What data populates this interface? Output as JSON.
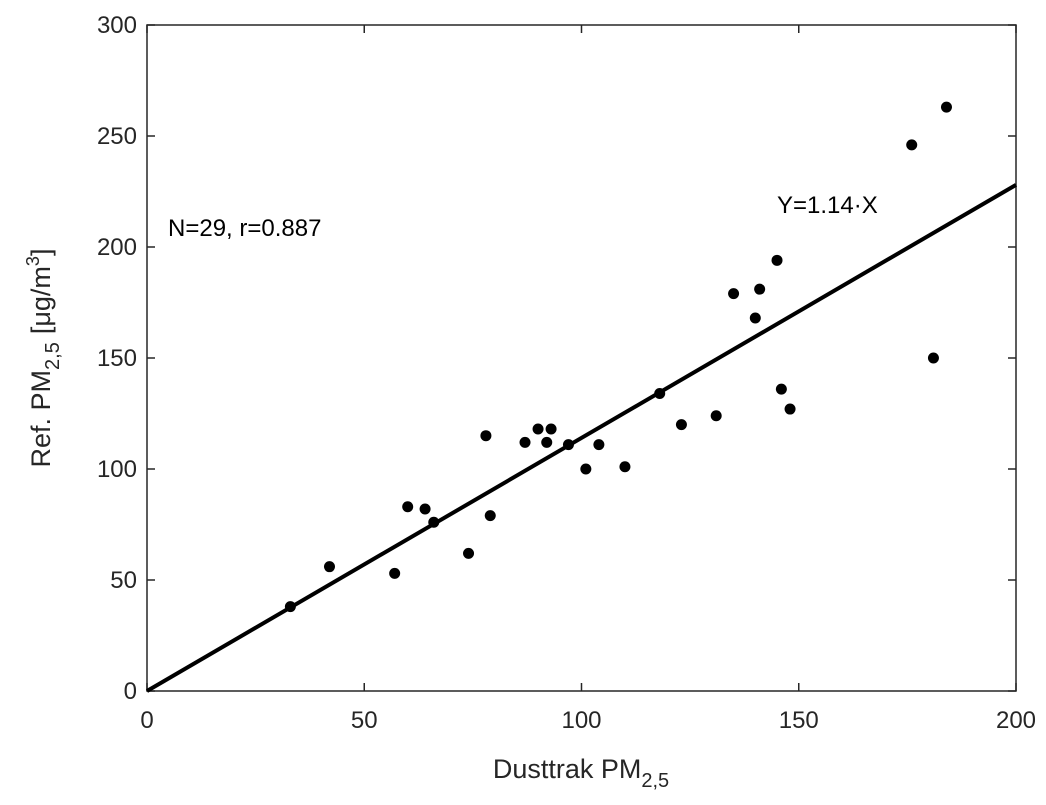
{
  "chart_data": {
    "type": "scatter",
    "xlabel": "Dusttrak PM",
    "xlabel_sub": "2,5",
    "ylabel_prefix": "Ref. PM",
    "ylabel_sub": "2,5",
    "ylabel_units": "[μg/m",
    "ylabel_sup": "3",
    "ylabel_close": "]",
    "xlim": [
      0,
      200
    ],
    "ylim": [
      0,
      300
    ],
    "xticks": [
      0,
      50,
      100,
      150,
      200
    ],
    "yticks": [
      0,
      50,
      100,
      150,
      200,
      250,
      300
    ],
    "grid": false,
    "series": [
      {
        "x": [
          33,
          42,
          57,
          60,
          64,
          66,
          74,
          78,
          79,
          87,
          90,
          92,
          93,
          97,
          101,
          104,
          110,
          118,
          123,
          131,
          135,
          140,
          141,
          145,
          146,
          148,
          176,
          181,
          184
        ],
        "y": [
          38,
          56,
          53,
          83,
          82,
          76,
          62,
          115,
          79,
          112,
          118,
          112,
          118,
          111,
          100,
          111,
          101,
          134,
          120,
          124,
          179,
          168,
          181,
          194,
          136,
          127,
          246,
          150,
          263
        ]
      }
    ],
    "fit_line": {
      "slope": 1.14,
      "intercept": 0
    },
    "annotations": {
      "stats": "N=29, r=0.887",
      "equation": "Y=1.14·X"
    },
    "colors": {
      "points": "#000000",
      "line": "#000000",
      "axes": "#262626"
    }
  }
}
